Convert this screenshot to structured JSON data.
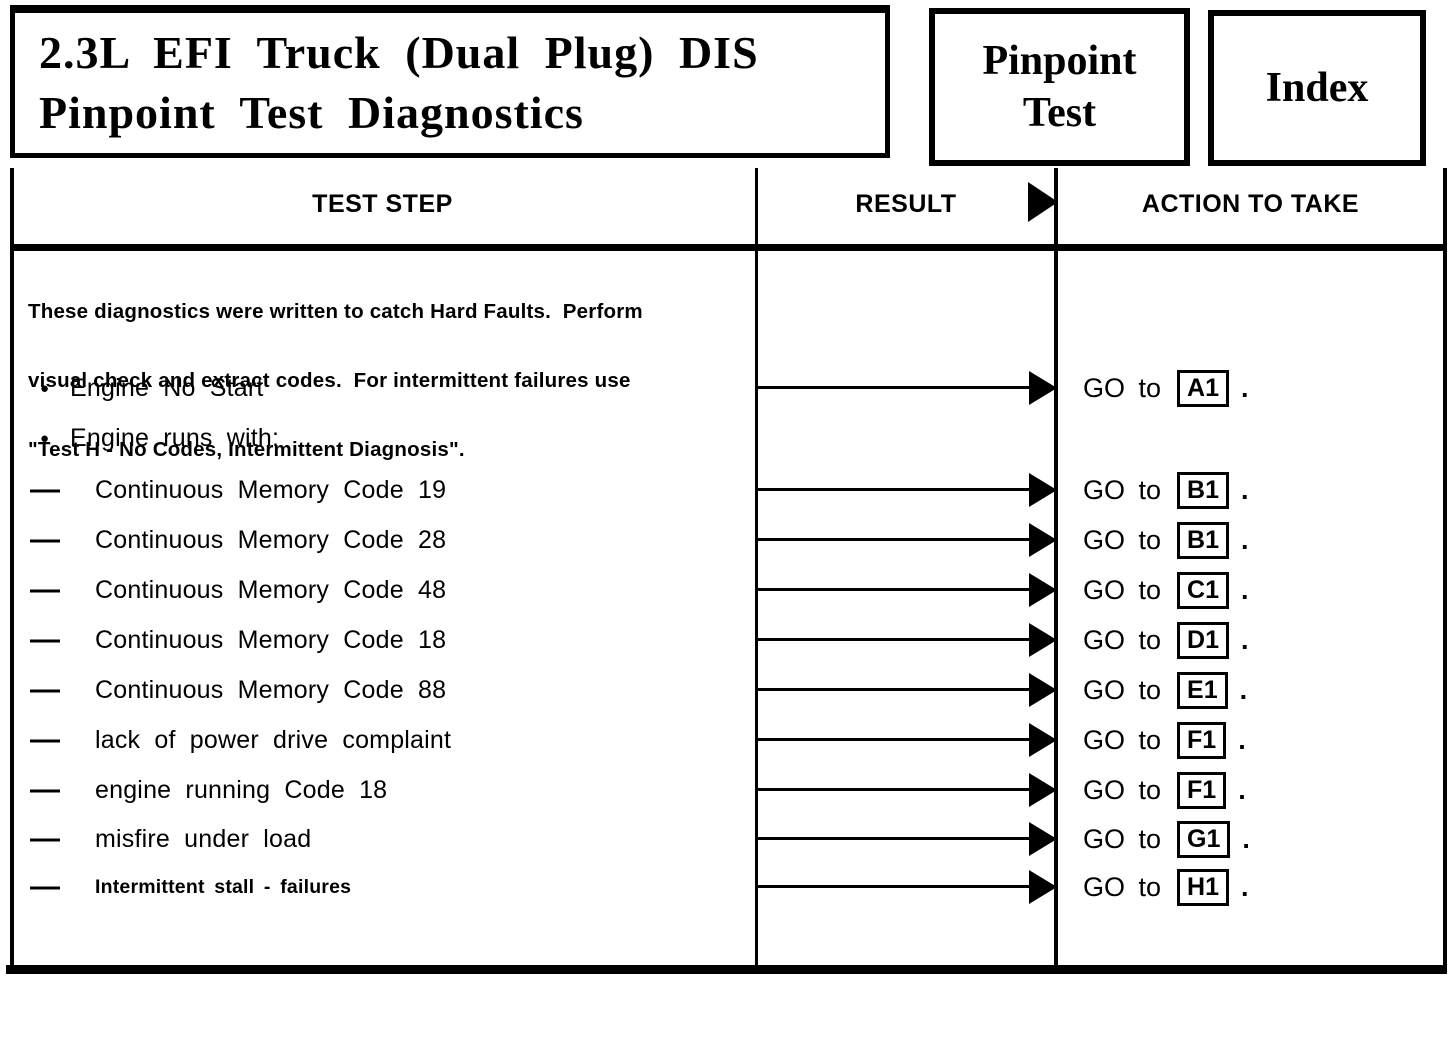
{
  "page": {
    "title_line1": "2.3L EFI Truck (Dual Plug) DIS",
    "title_line2": "Pinpoint Test Diagnostics",
    "pinpoint_button": {
      "line1": "Pinpoint",
      "line2": "Test"
    },
    "index_button": "Index"
  },
  "glyphs": {
    "bullet": "●",
    "dash": "—",
    "result_arrow": "filled-right-triangle"
  },
  "colors": {
    "ink": "#000000",
    "paper": "#ffffff"
  },
  "table": {
    "headers": {
      "test_step": "TEST STEP",
      "result": "RESULT",
      "action": "ACTION TO TAKE"
    },
    "intro_lines": [
      "These diagnostics were written to catch Hard Faults.  Perform",
      "visual check and extract codes.  For intermittent failures use",
      "\"Test H - No Codes, Intermittent Diagnosis\"."
    ],
    "action_prefix": "GO to",
    "action_suffix": ".",
    "rows": [
      {
        "marker": "bullet",
        "label": "Engine No Start",
        "arrow": true,
        "action_code": "A1"
      },
      {
        "marker": "bullet",
        "label": "Engine runs with:",
        "arrow": false,
        "action_code": null
      },
      {
        "marker": "dash",
        "label": "Continuous Memory Code 19",
        "arrow": true,
        "action_code": "B1"
      },
      {
        "marker": "dash",
        "label": "Continuous Memory Code 28",
        "arrow": true,
        "action_code": "B1"
      },
      {
        "marker": "dash",
        "label": "Continuous Memory Code 48",
        "arrow": true,
        "action_code": "C1"
      },
      {
        "marker": "dash",
        "label": "Continuous Memory Code 18",
        "arrow": true,
        "action_code": "D1"
      },
      {
        "marker": "dash",
        "label": "Continuous Memory Code 88",
        "arrow": true,
        "action_code": "E1"
      },
      {
        "marker": "dash",
        "label": "lack of power drive complaint",
        "arrow": true,
        "action_code": "F1"
      },
      {
        "marker": "dash",
        "label": "engine running Code 18",
        "arrow": true,
        "action_code": "F1"
      },
      {
        "marker": "dash",
        "label": "misfire under load",
        "arrow": true,
        "action_code": "G1"
      },
      {
        "marker": "dash",
        "label": "Intermittent stall - failures",
        "arrow": true,
        "action_code": "H1",
        "emphasis": true
      }
    ]
  }
}
